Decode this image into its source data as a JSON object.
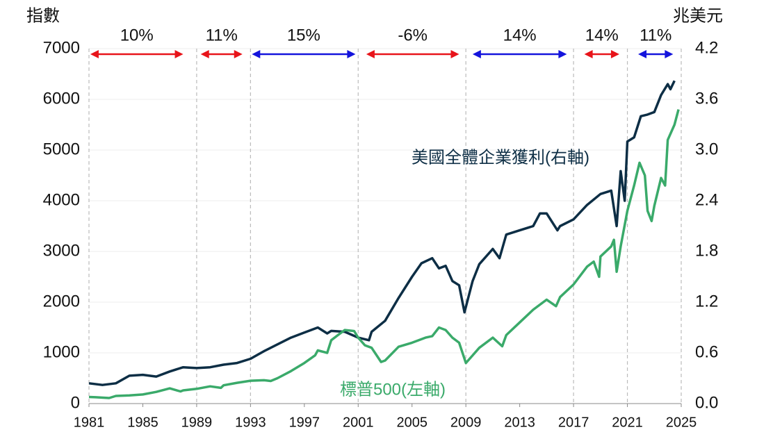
{
  "chart_data": {
    "type": "line",
    "ylabel": "指數",
    "y2label": "兆美元",
    "xlim": [
      1981,
      2025
    ],
    "xticks": [
      1981,
      1985,
      1989,
      1993,
      1997,
      2001,
      2005,
      2009,
      2013,
      2017,
      2021,
      2025
    ],
    "ylim": [
      0,
      7000
    ],
    "yticks": [
      0,
      1000,
      2000,
      3000,
      4000,
      5000,
      6000,
      7000
    ],
    "y2lim": [
      0,
      4.2
    ],
    "y2ticks": [
      {
        "value": 0,
        "label": "0.0"
      },
      0.6,
      1.2,
      1.8,
      2.4,
      {
        "value": 3,
        "label": "3.0"
      },
      3.6,
      4.2
    ],
    "grid": true,
    "period_lines": [
      1981,
      1989,
      1993,
      2001,
      2009,
      2017,
      2021,
      2025
    ],
    "annotations": [
      {
        "label": "10%",
        "start": 1981.1,
        "end": 1988.0,
        "color": "#e8141a"
      },
      {
        "label": "11%",
        "start": 1989.3,
        "end": 1992.4,
        "color": "#e8141a"
      },
      {
        "label": "15%",
        "start": 1993.1,
        "end": 2000.8,
        "color": "#1414dc"
      },
      {
        "label": "-6%",
        "start": 2001.6,
        "end": 2008.5,
        "color": "#e8141a"
      },
      {
        "label": "14%",
        "start": 2009.5,
        "end": 2016.5,
        "color": "#1414dc"
      },
      {
        "label": "14%",
        "start": 2017.8,
        "end": 2020.4,
        "color": "#e8141a"
      },
      {
        "label": "11%",
        "start": 2021.8,
        "end": 2024.4,
        "color": "#1414dc"
      }
    ],
    "series": [
      {
        "name": "美國全體企業獲利(右軸)",
        "color": "#0d2e45",
        "axis": "y2",
        "x": [
          1981,
          1982,
          1983,
          1984,
          1985,
          1986,
          1987,
          1988,
          1989,
          1990,
          1991,
          1992,
          1993,
          1994,
          1995,
          1996,
          1997,
          1998,
          1998.7,
          1999,
          2000,
          2001,
          2001.8,
          2002,
          2003,
          2004,
          2005,
          2005.7,
          2006.5,
          2007,
          2007.5,
          2008,
          2008.5,
          2008.9,
          2009.5,
          2010,
          2011,
          2011.5,
          2012,
          2013,
          2014,
          2014.5,
          2015,
          2015.8,
          2016,
          2017,
          2018,
          2019,
          2019.8,
          2020.2,
          2020.5,
          2020.8,
          2021,
          2021.5,
          2022,
          2022.5,
          2023,
          2023.5,
          2024,
          2024.2,
          2024.5
        ],
        "values": [
          0.24,
          0.22,
          0.24,
          0.33,
          0.34,
          0.32,
          0.38,
          0.43,
          0.42,
          0.43,
          0.46,
          0.48,
          0.53,
          0.62,
          0.7,
          0.78,
          0.84,
          0.9,
          0.83,
          0.86,
          0.85,
          0.78,
          0.75,
          0.85,
          0.98,
          1.25,
          1.5,
          1.66,
          1.72,
          1.6,
          1.63,
          1.45,
          1.4,
          1.08,
          1.45,
          1.65,
          1.83,
          1.72,
          2.0,
          2.05,
          2.1,
          2.25,
          2.25,
          2.05,
          2.1,
          2.18,
          2.35,
          2.48,
          2.52,
          2.1,
          2.75,
          2.4,
          3.1,
          3.15,
          3.4,
          3.42,
          3.45,
          3.65,
          3.78,
          3.72,
          3.82
        ]
      },
      {
        "name": "標普500(左軸)",
        "color": "#3aaa6a",
        "x": [
          1981,
          1981.5,
          1982.5,
          1983,
          1984,
          1985,
          1986,
          1987,
          1987.8,
          1988,
          1989,
          1990,
          1990.8,
          1991,
          1992,
          1993,
          1994,
          1994.5,
          1995,
          1996,
          1997,
          1997.8,
          1998,
          1998.7,
          1999,
          1999.5,
          2000,
          2000.7,
          2001,
          2001.5,
          2002,
          2002.7,
          2003,
          2004,
          2005,
          2006,
          2006.5,
          2007,
          2007.5,
          2008,
          2008.5,
          2009,
          2009.5,
          2010,
          2011,
          2011.7,
          2012,
          2013,
          2014,
          2015,
          2015.7,
          2016,
          2017,
          2018,
          2018.5,
          2018.9,
          2019,
          2019.8,
          2020,
          2020.2,
          2020.5,
          2021,
          2021.5,
          2021.9,
          2022.3,
          2022.5,
          2022.8,
          2023,
          2023.5,
          2023.8,
          2024,
          2024.5,
          2024.8
        ],
        "values": [
          130,
          125,
          110,
          150,
          160,
          180,
          230,
          300,
          240,
          260,
          290,
          340,
          310,
          360,
          410,
          450,
          460,
          445,
          500,
          640,
          800,
          950,
          1050,
          1000,
          1250,
          1350,
          1450,
          1430,
          1300,
          1150,
          1100,
          820,
          850,
          1120,
          1200,
          1300,
          1330,
          1500,
          1450,
          1300,
          1200,
          800,
          950,
          1100,
          1300,
          1130,
          1350,
          1600,
          1850,
          2050,
          1920,
          2100,
          2350,
          2700,
          2800,
          2500,
          2900,
          3100,
          3230,
          2600,
          3100,
          3800,
          4300,
          4750,
          4500,
          3800,
          3600,
          3900,
          4450,
          4300,
          5200,
          5500,
          5800
        ]
      }
    ]
  }
}
